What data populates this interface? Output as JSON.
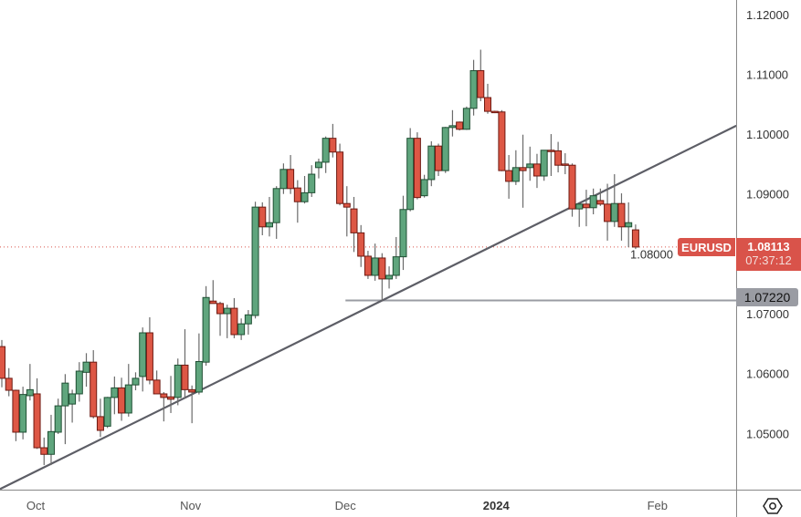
{
  "symbol": "EURUSD",
  "last_price": "1.08113",
  "countdown": "07:37:12",
  "level_label": "1.07220",
  "colors": {
    "up": "#5fa57d",
    "up_border": "#1f4f33",
    "down": "#dd5745",
    "down_border": "#6e1a12",
    "wick": "#6b6b6b",
    "trendline": "#5d5e66",
    "level_line": "#9a9ca3",
    "price_label": "#d9534a",
    "axis": "#888888"
  },
  "chart_data": {
    "type": "candlestick",
    "symbol": "EURUSD",
    "ylim": [
      1.0406,
      1.1224
    ],
    "y_ticks": [
      "1.05000",
      "1.06000",
      "1.07000",
      "1.08000",
      "1.09000",
      "1.10000",
      "1.11000",
      "1.12000"
    ],
    "x_ticks": [
      {
        "label": "Oct",
        "index": 4.8,
        "bold": false
      },
      {
        "label": "Nov",
        "index": 26.8,
        "bold": false
      },
      {
        "label": "Dec",
        "index": 48.8,
        "bold": false
      },
      {
        "label": "2024",
        "index": 70.2,
        "bold": true
      },
      {
        "label": "Feb",
        "index": 93.1,
        "bold": false
      }
    ],
    "grid": false,
    "current_price": 1.08113,
    "horizontal_level": {
      "price": 1.0722,
      "from_index": 48.8
    },
    "trendline": {
      "points": [
        [
          -0.26,
          1.0407
        ],
        [
          104.3,
          1.1014
        ]
      ]
    },
    "ohlc": [
      [
        1.0645,
        1.0656,
        1.0577,
        1.0592
      ],
      [
        1.0592,
        1.0609,
        1.0562,
        1.0572
      ],
      [
        1.0572,
        1.0573,
        1.0487,
        1.0502
      ],
      [
        1.0502,
        1.0578,
        1.049,
        1.0565
      ],
      [
        1.0563,
        1.0616,
        1.0555,
        1.0573
      ],
      [
        1.0566,
        1.0592,
        1.0474,
        1.0476
      ],
      [
        1.0476,
        1.0493,
        1.0447,
        1.0465
      ],
      [
        1.0465,
        1.0531,
        1.0447,
        1.0503
      ],
      [
        1.0502,
        1.0558,
        1.0499,
        1.0546
      ],
      [
        1.0546,
        1.0599,
        1.0482,
        1.0584
      ],
      [
        1.0549,
        1.0573,
        1.0518,
        1.0566
      ],
      [
        1.0566,
        1.0619,
        1.0553,
        1.0604
      ],
      [
        1.0602,
        1.0634,
        1.0578,
        1.0619
      ],
      [
        1.0619,
        1.0639,
        1.0525,
        1.0528
      ],
      [
        1.0528,
        1.0558,
        1.0494,
        1.0505
      ],
      [
        1.0512,
        1.0561,
        1.0509,
        1.056
      ],
      [
        1.056,
        1.0595,
        1.0532,
        1.0576
      ],
      [
        1.0576,
        1.0593,
        1.0521,
        1.0534
      ],
      [
        1.0534,
        1.0616,
        1.0528,
        1.0581
      ],
      [
        1.0581,
        1.0602,
        1.0572,
        1.0592
      ],
      [
        1.0595,
        1.0677,
        1.057,
        1.0668
      ],
      [
        1.0668,
        1.0694,
        1.0582,
        1.0589
      ],
      [
        1.0589,
        1.0605,
        1.0566,
        1.0566
      ],
      [
        1.0566,
        1.0569,
        1.052,
        1.056
      ],
      [
        1.0561,
        1.0596,
        1.0534,
        1.0557
      ],
      [
        1.056,
        1.0625,
        1.0547,
        1.0614
      ],
      [
        1.0614,
        1.0674,
        1.0558,
        1.0573
      ],
      [
        1.0573,
        1.058,
        1.0517,
        1.0569
      ],
      [
        1.0569,
        1.0667,
        1.0565,
        1.062
      ],
      [
        1.0619,
        1.0746,
        1.0613,
        1.0727
      ],
      [
        1.0721,
        1.0756,
        1.0717,
        1.0717
      ],
      [
        1.0717,
        1.072,
        1.0663,
        1.07
      ],
      [
        1.07,
        1.0715,
        1.0659,
        1.0709
      ],
      [
        1.0709,
        1.0726,
        1.0659,
        1.0665
      ],
      [
        1.0665,
        1.0692,
        1.0656,
        1.0683
      ],
      [
        1.0683,
        1.0706,
        1.0665,
        1.0698
      ],
      [
        1.0697,
        1.0887,
        1.0692,
        1.0878
      ],
      [
        1.0878,
        1.0886,
        1.0831,
        1.0845
      ],
      [
        1.0845,
        1.0895,
        1.0829,
        1.0852
      ],
      [
        1.0852,
        1.0913,
        1.0825,
        1.0909
      ],
      [
        1.0909,
        1.0951,
        1.09,
        1.0941
      ],
      [
        1.0941,
        1.0965,
        1.09,
        1.0909
      ],
      [
        1.091,
        1.0923,
        1.0852,
        1.0887
      ],
      [
        1.0887,
        1.093,
        1.0884,
        1.0902
      ],
      [
        1.0902,
        1.0948,
        1.0895,
        1.0933
      ],
      [
        1.0944,
        1.0959,
        1.0926,
        1.0953
      ],
      [
        1.0953,
        1.0996,
        1.0935,
        1.0993
      ],
      [
        1.0993,
        1.1017,
        1.0961,
        1.097
      ],
      [
        1.097,
        1.0984,
        1.0881,
        1.0884
      ],
      [
        1.0884,
        1.0913,
        1.0829,
        1.0878
      ],
      [
        1.0875,
        1.0895,
        1.0803,
        1.0835
      ],
      [
        1.0835,
        1.0848,
        1.0778,
        1.0796
      ],
      [
        1.0796,
        1.0805,
        1.0758,
        1.0764
      ],
      [
        1.0764,
        1.0817,
        1.0755,
        1.0793
      ],
      [
        1.0793,
        1.0801,
        1.0722,
        1.0758
      ],
      [
        1.0758,
        1.0779,
        1.0742,
        1.0764
      ],
      [
        1.0764,
        1.0828,
        1.0758,
        1.0795
      ],
      [
        1.0795,
        1.0897,
        1.0773,
        1.0874
      ],
      [
        1.0874,
        1.101,
        1.0871,
        1.0993
      ],
      [
        1.0993,
        1.1003,
        1.0891,
        1.0894
      ],
      [
        1.0897,
        1.0932,
        1.0894,
        1.0924
      ],
      [
        1.0924,
        1.0988,
        1.0913,
        1.098
      ],
      [
        1.098,
        1.0984,
        1.093,
        1.0939
      ],
      [
        1.0939,
        1.1012,
        1.0935,
        1.1011
      ],
      [
        1.1011,
        1.104,
        1.0996,
        1.1014
      ],
      [
        1.102,
        1.1021,
        1.1006,
        1.1008
      ],
      [
        1.1008,
        1.1046,
        1.1007,
        1.1043
      ],
      [
        1.1043,
        1.1124,
        1.1031,
        1.1106
      ],
      [
        1.1106,
        1.1141,
        1.1055,
        1.1061
      ],
      [
        1.1061,
        1.1084,
        1.1034,
        1.1038
      ],
      [
        1.1038,
        1.1039,
        1.1035,
        1.1037
      ],
      [
        1.1037,
        1.104,
        1.0938,
        1.0939
      ],
      [
        1.0939,
        1.0965,
        1.0892,
        1.0921
      ],
      [
        1.0921,
        1.0973,
        1.0915,
        1.0944
      ],
      [
        1.0944,
        1.0999,
        1.0877,
        1.0939
      ],
      [
        1.0944,
        1.0979,
        1.0922,
        1.095
      ],
      [
        1.095,
        1.0967,
        1.091,
        1.093
      ],
      [
        1.093,
        1.0973,
        1.0922,
        1.0973
      ],
      [
        1.0973,
        1.1,
        1.093,
        1.0972
      ],
      [
        1.0972,
        1.0987,
        1.0936,
        1.0948
      ],
      [
        1.095,
        1.0968,
        1.0933,
        1.0948
      ],
      [
        1.0948,
        1.0951,
        1.0862,
        1.0875
      ],
      [
        1.0875,
        1.0883,
        1.0845,
        1.0883
      ],
      [
        1.0883,
        1.0907,
        1.0846,
        1.0877
      ],
      [
        1.0877,
        1.0909,
        1.0866,
        1.0897
      ],
      [
        1.0889,
        1.0909,
        1.088,
        1.0883
      ],
      [
        1.0883,
        1.0917,
        1.0822,
        1.0854
      ],
      [
        1.0854,
        1.0933,
        1.0845,
        1.0884
      ],
      [
        1.0884,
        1.0901,
        1.0822,
        1.0845
      ],
      [
        1.0845,
        1.0886,
        1.0811,
        1.0852
      ],
      [
        1.084,
        1.0849,
        1.0808,
        1.08113
      ]
    ]
  }
}
